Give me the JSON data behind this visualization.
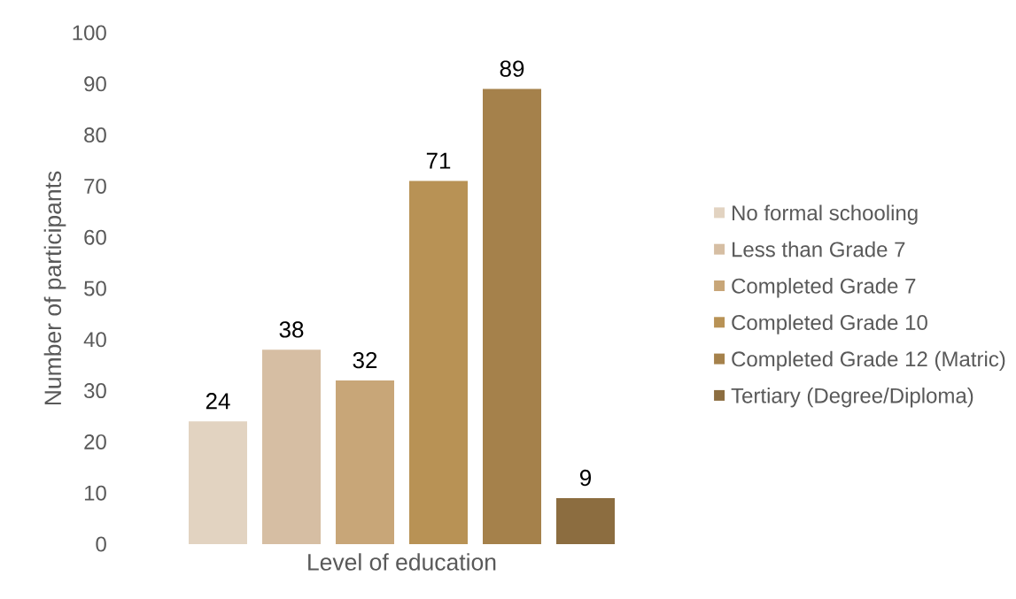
{
  "chart_data": {
    "type": "bar",
    "xlabel": "Level of education",
    "ylabel": "Number of participants",
    "categories": [
      null
    ],
    "series": [
      {
        "name": "No formal schooling",
        "color": "#e2d3c1",
        "values": [
          24
        ]
      },
      {
        "name": "Less than Grade 7",
        "color": "#d6bea3",
        "values": [
          38
        ]
      },
      {
        "name": "Completed Grade 7",
        "color": "#c8a678",
        "values": [
          32
        ]
      },
      {
        "name": "Completed Grade 10",
        "color": "#b89255",
        "values": [
          71
        ]
      },
      {
        "name": "Completed Grade 12 (Matric)",
        "color": "#a5814b",
        "values": [
          89
        ]
      },
      {
        "name": "Tertiary (Degree/Diploma)",
        "color": "#8c6d40",
        "values": [
          9
        ]
      }
    ],
    "ylim": [
      0,
      100
    ],
    "yticks": [
      0,
      10,
      20,
      30,
      40,
      50,
      60,
      70,
      80,
      90,
      100
    ],
    "data_labels": true,
    "legend": "right"
  }
}
